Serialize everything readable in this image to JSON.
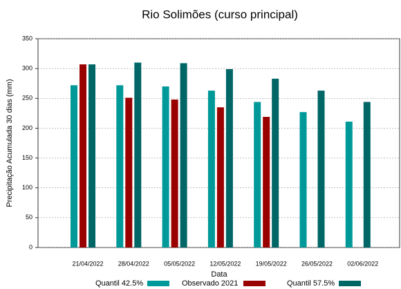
{
  "chart_data": {
    "type": "bar",
    "title": "Rio Solimões (curso principal)",
    "x_label": "Data",
    "y_label": "Precipitação Acumulada 30 dias (mm)",
    "categories": [
      "21/04/2022",
      "28/04/2022",
      "05/05/2022",
      "12/05/2022",
      "19/05/2022",
      "26/05/2022",
      "02/06/2022"
    ],
    "series": [
      {
        "name": "Quantil 42.5%",
        "color": "#009999",
        "values": [
          272,
          272,
          270,
          263,
          244,
          227,
          211
        ]
      },
      {
        "name": "Observado 2021",
        "color": "#990000",
        "values": [
          307,
          251,
          248,
          235,
          219,
          null,
          null
        ]
      },
      {
        "name": "Quantil 57.5%",
        "color": "#006666",
        "values": [
          307,
          310,
          309,
          299,
          283,
          263,
          244
        ]
      }
    ],
    "ylim": [
      0,
      350
    ],
    "yticks": [
      0,
      50,
      100,
      150,
      200,
      250,
      300,
      350
    ],
    "grid": true,
    "legend": "bottom"
  }
}
